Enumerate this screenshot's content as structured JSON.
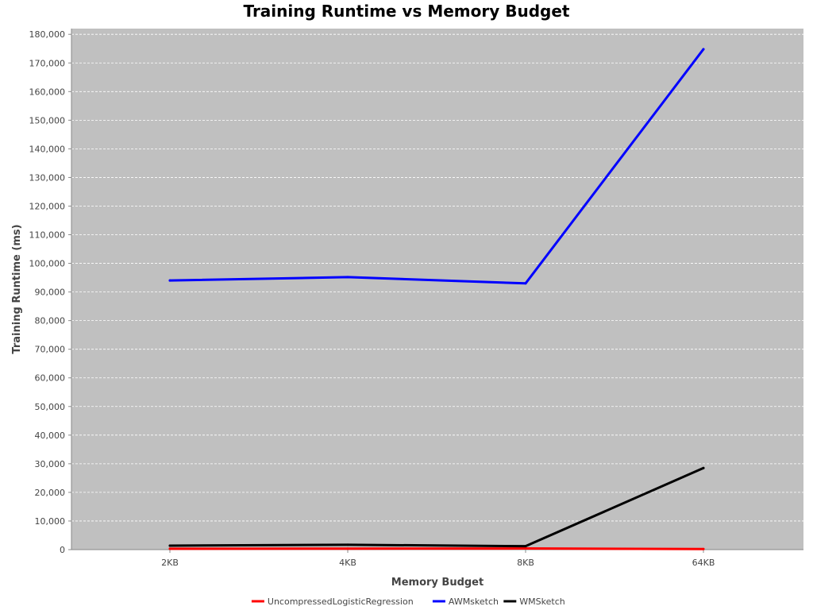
{
  "chart_data": {
    "type": "line",
    "title": "Training Runtime vs Memory Budget",
    "xlabel": "Memory Budget",
    "ylabel": "Training Runtime (ms)",
    "categories": [
      "2KB",
      "4KB",
      "8KB",
      "64KB"
    ],
    "ylim": [
      0,
      182000
    ],
    "yticks": [
      0,
      10000,
      20000,
      30000,
      40000,
      50000,
      60000,
      70000,
      80000,
      90000,
      100000,
      110000,
      120000,
      130000,
      140000,
      150000,
      160000,
      170000,
      180000
    ],
    "ytick_labels": [
      "0",
      "10,000",
      "20,000",
      "30,000",
      "40,000",
      "50,000",
      "60,000",
      "70,000",
      "80,000",
      "90,000",
      "100,000",
      "110,000",
      "120,000",
      "130,000",
      "140,000",
      "150,000",
      "160,000",
      "170,000",
      "180,000"
    ],
    "grid": true,
    "legend_position": "bottom",
    "plot_background": "#c0c0c0",
    "series": [
      {
        "name": "UncompressedLogisticRegression",
        "color": "#ff0000",
        "values": [
          300,
          350,
          400,
          200
        ]
      },
      {
        "name": "AWMsketch",
        "color": "#0000ff",
        "values": [
          94000,
          95200,
          93000,
          174800
        ]
      },
      {
        "name": "WMSketch",
        "color": "#000000",
        "values": [
          1400,
          1700,
          1200,
          28500
        ]
      }
    ]
  }
}
